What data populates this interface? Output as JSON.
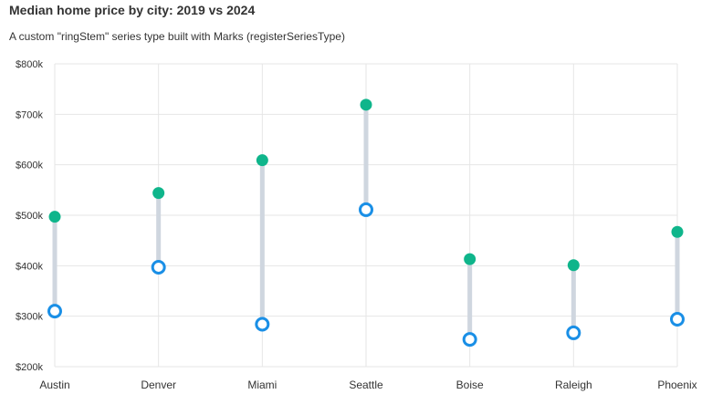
{
  "chart_data": {
    "type": "dumbbell",
    "title": "Median home price by city: 2019 vs 2024",
    "subtitle": "A custom \"ringStem\" series type built with Marks (registerSeriesType)",
    "categories": [
      "Austin",
      "Denver",
      "Miami",
      "Seattle",
      "Boise",
      "Raleigh",
      "Phoenix"
    ],
    "series": [
      {
        "values": [
          310000,
          397000,
          284000,
          511000,
          254000,
          267000,
          294000
        ],
        "marker": "ring",
        "color": "#1a8fe6"
      },
      {
        "values": [
          497000,
          544000,
          609000,
          719000,
          413000,
          401000,
          467000
        ],
        "marker": "dot",
        "color": "#0fb58b"
      }
    ],
    "stem_color": "#cfd6df",
    "ylim": [
      200000,
      800000
    ],
    "yticks": [
      200000,
      300000,
      400000,
      500000,
      600000,
      700000,
      800000
    ],
    "ytick_labels": [
      "$200k",
      "$300k",
      "$400k",
      "$500k",
      "$600k",
      "$700k",
      "$800k"
    ],
    "grid": true,
    "xlabel": "",
    "ylabel": ""
  }
}
